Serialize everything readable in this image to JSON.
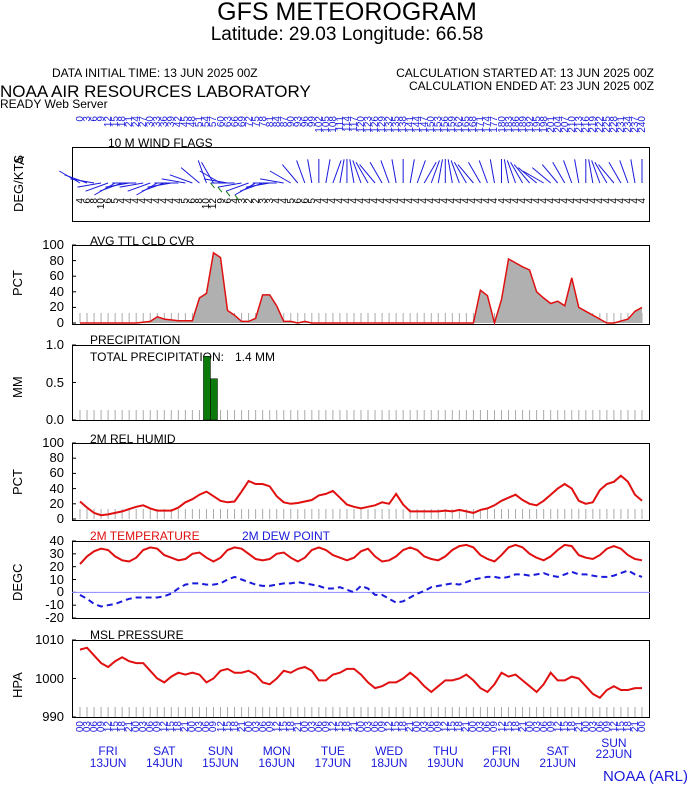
{
  "header": {
    "title": "GFS METEOROGRAM",
    "subtitle": "Latitude: 29.03 Longitude:  66.58",
    "init_time": "DATA INITIAL TIME: 13 JUN 2025 00Z",
    "calc_start": "CALCULATION STARTED AT: 13 JUN 2025 00Z",
    "calc_end": "CALCULATION ENDED AT: 23 JUN 2025 00Z",
    "lab": "NOAA AIR RESOURCES LABORATORY",
    "server": "READY Web Server",
    "credit": "NOAA (ARL)"
  },
  "colors": {
    "red": "#e01010",
    "blue": "#1a1adc",
    "green": "#0a7a0a",
    "gray": "#b0b0b0"
  },
  "chart_data": [
    {
      "type": "scatter",
      "panel": "wind",
      "title": "10 M  WIND FLAGS",
      "ylabel": "DEG/KTS",
      "yaxis_label_extra": "A",
      "top_labels": [
        "0",
        "3",
        "6",
        "9",
        "12",
        "15",
        "18",
        "21",
        "24",
        "27",
        "30",
        "33",
        "36",
        "39",
        "42",
        "45",
        "48",
        "51",
        "54",
        "57",
        "60",
        "63",
        "66",
        "69",
        "72",
        "75",
        "78",
        "81",
        "84",
        "87",
        "90",
        "93",
        "96",
        "99",
        "102",
        "105",
        "108",
        "111",
        "114",
        "117",
        "120",
        "123",
        "126",
        "129",
        "132",
        "135",
        "138",
        "141",
        "144",
        "147",
        "150",
        "153",
        "156",
        "159",
        "162",
        "165",
        "168",
        "171",
        "174",
        "177",
        "180",
        "183",
        "186",
        "189",
        "192",
        "195",
        "198",
        "201",
        "204",
        "207",
        "210",
        "213",
        "216",
        "219",
        "222",
        "225",
        "228",
        "231",
        "234",
        "237",
        "240"
      ],
      "directions": [
        300,
        290,
        280,
        260,
        250,
        240,
        250,
        260,
        270,
        260,
        250,
        240,
        250,
        260,
        270,
        280,
        290,
        310,
        340,
        330,
        300,
        280,
        270,
        260,
        250,
        240,
        250,
        260,
        270,
        280,
        300,
        320,
        340,
        350,
        0,
        10,
        20,
        10,
        0,
        350,
        340,
        330,
        320,
        330,
        340,
        350,
        0,
        10,
        20,
        30,
        20,
        10,
        0,
        350,
        340,
        330,
        320,
        330,
        340,
        350,
        0,
        350,
        340,
        330,
        320,
        310,
        300,
        310,
        320,
        330,
        340,
        350,
        0,
        350,
        340,
        330,
        320,
        330,
        340,
        350,
        0
      ],
      "speeds": [
        4,
        6,
        8,
        10,
        6,
        5,
        4,
        4,
        4,
        4,
        4,
        4,
        4,
        4,
        4,
        5,
        6,
        8,
        10,
        12,
        9,
        6,
        4,
        3,
        2,
        2,
        3,
        3,
        4,
        4,
        5,
        6,
        6,
        5,
        4,
        4,
        4,
        4,
        4,
        4,
        4,
        4,
        4,
        4,
        4,
        4,
        4,
        4,
        4,
        4,
        4,
        4,
        4,
        4,
        4,
        4,
        4,
        4,
        4,
        4,
        4,
        4,
        4,
        4,
        4,
        4,
        4,
        4,
        4,
        4,
        4,
        4,
        4,
        4,
        4,
        4,
        4,
        4,
        4,
        4,
        4
      ]
    },
    {
      "type": "area",
      "panel": "cloud",
      "title": "AVG TTL CLD CVR",
      "ylabel": "PCT",
      "ylim": [
        0,
        100
      ],
      "yticks": [
        "100",
        "80",
        "60",
        "40",
        "20",
        "0"
      ],
      "x_hours": [
        0,
        6,
        12,
        18,
        24,
        30,
        33,
        36,
        42,
        48,
        51,
        54,
        57,
        60,
        63,
        66,
        69,
        72,
        75,
        78,
        81,
        84,
        87,
        90,
        93,
        96,
        99,
        102,
        108,
        114,
        120,
        126,
        132,
        138,
        144,
        150,
        156,
        162,
        168,
        171,
        174,
        177,
        180,
        183,
        186,
        189,
        192,
        195,
        198,
        201,
        204,
        207,
        210,
        213,
        216,
        219,
        222,
        225,
        228,
        234,
        237,
        240
      ],
      "values": [
        0,
        0,
        0,
        0,
        0,
        2,
        8,
        5,
        3,
        3,
        32,
        38,
        90,
        84,
        16,
        10,
        2,
        2,
        6,
        36,
        36,
        22,
        2,
        2,
        0,
        2,
        0,
        0,
        0,
        0,
        0,
        0,
        0,
        0,
        0,
        0,
        0,
        0,
        0,
        42,
        35,
        0,
        30,
        82,
        77,
        72,
        68,
        40,
        32,
        25,
        28,
        22,
        58,
        20,
        15,
        10,
        5,
        0,
        0,
        5,
        15,
        20
      ]
    },
    {
      "type": "bar",
      "panel": "precip",
      "title": "PRECIPITATION",
      "label": "TOTAL PRECIPITATION:",
      "total": "1.4 MM",
      "ylabel": "MM",
      "ylim": [
        0,
        1.0
      ],
      "yticks": [
        "1.0",
        "0.5",
        "0.0"
      ],
      "x_hours": [
        54,
        57
      ],
      "values": [
        0.85,
        0.55
      ]
    },
    {
      "type": "line",
      "panel": "humidity",
      "title": "2M REL HUMID",
      "ylabel": "PCT",
      "ylim": [
        0,
        100
      ],
      "yticks": [
        "100",
        "80",
        "60",
        "40",
        "20",
        "0"
      ],
      "x_step_hours": 3,
      "values": [
        23,
        15,
        8,
        5,
        6,
        8,
        10,
        13,
        16,
        18,
        14,
        11,
        11,
        11,
        15,
        22,
        26,
        32,
        36,
        30,
        24,
        22,
        23,
        36,
        50,
        46,
        46,
        43,
        30,
        22,
        20,
        21,
        23,
        25,
        31,
        33,
        37,
        28,
        19,
        16,
        14,
        16,
        18,
        22,
        20,
        33,
        19,
        10,
        10,
        10,
        10,
        10,
        11,
        10,
        12,
        10,
        8,
        12,
        14,
        18,
        24,
        28,
        32,
        25,
        20,
        18,
        24,
        32,
        40,
        46,
        40,
        24,
        20,
        22,
        38,
        46,
        49,
        57,
        49,
        32,
        24
      ]
    },
    {
      "type": "line",
      "panel": "temperature",
      "title": "2M TEMPERATURE",
      "title2": "2M   DEW POINT",
      "ylabel": "DEGC",
      "ylim": [
        -20,
        40
      ],
      "yticks": [
        "40",
        "30",
        "20",
        "10",
        "0",
        "-10",
        "-20"
      ],
      "x_step_hours": 3,
      "series": [
        {
          "name": "2M TEMPERATURE",
          "values": [
            22,
            28,
            32,
            34,
            33,
            28,
            25,
            24,
            27,
            33,
            35,
            34,
            29,
            27,
            25,
            26,
            30,
            31,
            27,
            24,
            27,
            33,
            35,
            34,
            30,
            26,
            25,
            26,
            30,
            31,
            27,
            24,
            27,
            33,
            35,
            33,
            29,
            27,
            25,
            27,
            32,
            34,
            28,
            24,
            25,
            28,
            33,
            35,
            33,
            28,
            26,
            25,
            28,
            33,
            36,
            37,
            35,
            29,
            26,
            24,
            29,
            35,
            37,
            35,
            30,
            27,
            25,
            28,
            33,
            37,
            36,
            29,
            27,
            26,
            29,
            34,
            36,
            34,
            29,
            26,
            25
          ]
        },
        {
          "name": "2M DEW POINT",
          "values": [
            -2,
            -5,
            -9,
            -11,
            -10,
            -9,
            -7,
            -5,
            -4,
            -4,
            -4,
            -4,
            -3,
            -1,
            3,
            6,
            7,
            7,
            6,
            6,
            7,
            10,
            12,
            10,
            8,
            6,
            5,
            5,
            6,
            7,
            7,
            8,
            7,
            6,
            5,
            3,
            3,
            4,
            2,
            0,
            5,
            3,
            -2,
            -2,
            -5,
            -8,
            -7,
            -4,
            -1,
            1,
            4,
            5,
            6,
            7,
            6,
            8,
            10,
            11,
            12,
            12,
            11,
            12,
            14,
            14,
            13,
            14,
            15,
            13,
            12,
            14,
            16,
            14,
            14,
            13,
            12,
            12,
            13,
            15,
            17,
            14,
            12
          ]
        }
      ]
    },
    {
      "type": "line",
      "panel": "pressure",
      "title": "MSL PRESSURE",
      "ylabel": "HPA",
      "ylim": [
        990,
        1010
      ],
      "yticks": [
        "1010",
        "1000",
        "990"
      ],
      "x_step_hours": 3,
      "values": [
        1007.5,
        1008,
        1006,
        1004,
        1003,
        1004.5,
        1005.5,
        1004.5,
        1004,
        1004,
        1002,
        1000,
        999,
        1000.5,
        1001.5,
        1001,
        1001.5,
        1001,
        999,
        1000,
        1002,
        1002.5,
        1001.5,
        1001.5,
        1002,
        1001,
        999,
        998.5,
        1000,
        1002,
        1001.5,
        1002.5,
        1003,
        1002,
        999.5,
        999.5,
        1001,
        1001.5,
        1002.5,
        1002.5,
        1001,
        999,
        997.5,
        998,
        999,
        999,
        1000,
        1001.5,
        1000,
        998,
        996.5,
        998,
        999.5,
        999.5,
        1000,
        1001,
        999.5,
        997.5,
        996.5,
        998.5,
        1001.5,
        1000.5,
        1001,
        999.5,
        998,
        996.5,
        998.5,
        1001.5,
        999.5,
        999.5,
        1000.5,
        1000,
        998,
        996,
        995,
        997,
        998,
        997,
        997,
        997.5,
        997.5
      ]
    }
  ],
  "x_axis": {
    "hour_labels": [
      "00",
      "03",
      "06",
      "09",
      "12",
      "15",
      "18",
      "21",
      "00",
      "03",
      "06",
      "09",
      "12",
      "15",
      "18",
      "21",
      "00",
      "03",
      "06",
      "09",
      "12",
      "15",
      "18",
      "21",
      "00",
      "03",
      "06",
      "09",
      "12",
      "15",
      "18",
      "21",
      "00",
      "03",
      "06",
      "09",
      "12",
      "15",
      "18",
      "21",
      "00",
      "03",
      "06",
      "09",
      "12",
      "15",
      "18",
      "21",
      "00",
      "03",
      "06",
      "09",
      "12",
      "15",
      "18",
      "21",
      "00",
      "03",
      "06",
      "09",
      "12",
      "15",
      "18",
      "21",
      "00",
      "03",
      "06",
      "09",
      "12",
      "15",
      "18",
      "21",
      "00",
      "03",
      "06",
      "09",
      "12",
      "15",
      "18",
      "21",
      "00"
    ],
    "days": [
      {
        "dow": "FRI",
        "date": "13JUN"
      },
      {
        "dow": "SAT",
        "date": "14JUN"
      },
      {
        "dow": "SUN",
        "date": "15JUN"
      },
      {
        "dow": "MON",
        "date": "16JUN"
      },
      {
        "dow": "TUE",
        "date": "17JUN"
      },
      {
        "dow": "WED",
        "date": "18JUN"
      },
      {
        "dow": "THU",
        "date": "19JUN"
      },
      {
        "dow": "FRI",
        "date": "20JUN"
      },
      {
        "dow": "SAT",
        "date": "21JUN"
      },
      {
        "dow": "SUN",
        "date": "22JUN"
      }
    ]
  }
}
